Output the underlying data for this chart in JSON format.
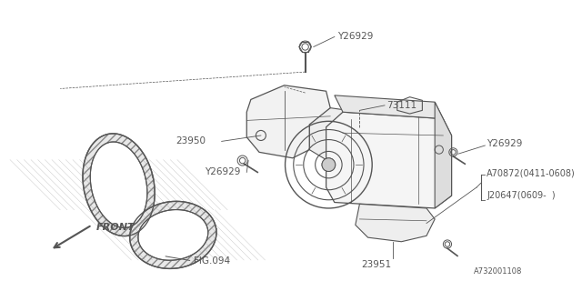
{
  "bg_color": "#ffffff",
  "diagram_number": "A732001108",
  "line_color": "#555555",
  "text_color": "#555555",
  "font_size": 7.5,
  "belt_hatch_color": "#aaaaaa",
  "label_73111": "73111",
  "label_23950": "23950",
  "label_23951": "23951",
  "label_fig094": "FIG.094",
  "label_front": "FRONT",
  "label_y26929": "Y26929",
  "label_a70872": "A70872(0411-0608)",
  "label_j20647": "J20647(0609-  )"
}
